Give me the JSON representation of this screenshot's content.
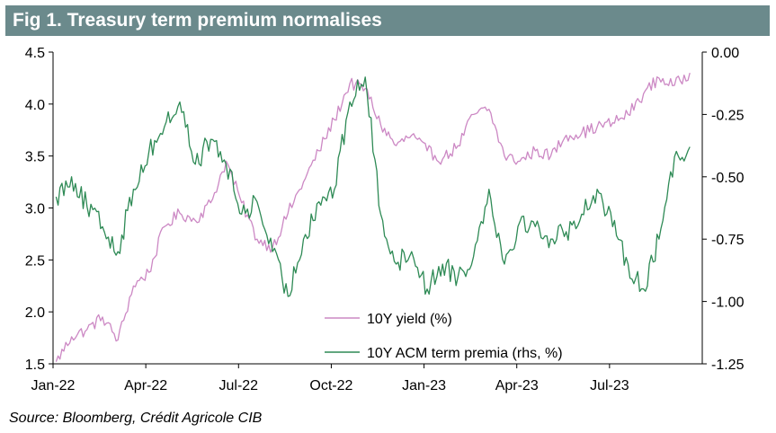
{
  "figure": {
    "title": "Fig 1. Treasury term premium normalises",
    "source": "Source: Bloomberg, Crédit Agricole CIB"
  },
  "chart_data": {
    "type": "line",
    "title": "Fig 1. Treasury term premium normalises",
    "x_ticks": [
      "Jan-22",
      "Apr-22",
      "Jul-22",
      "Oct-22",
      "Jan-23",
      "Apr-23",
      "Jul-23"
    ],
    "x_range": [
      "2022-01",
      "2023-10"
    ],
    "y_left": {
      "range": [
        1.5,
        4.5
      ],
      "ticks": [
        "1.5",
        "2.0",
        "2.5",
        "3.0",
        "3.5",
        "4.0",
        "4.5"
      ]
    },
    "y_right": {
      "range": [
        -1.25,
        0.0
      ],
      "ticks": [
        "-1.25",
        "-1.00",
        "-0.75",
        "-0.50",
        "-0.25",
        "0.00"
      ]
    },
    "grid": false,
    "legend_position": "bottom-center",
    "series": [
      {
        "name": "10Y yield (%)",
        "axis": "left",
        "color": "#cc88c4",
        "x": [
          "2022-01",
          "2022-01",
          "2022-02",
          "2022-02",
          "2022-03",
          "2022-03",
          "2022-04",
          "2022-04",
          "2022-05",
          "2022-05",
          "2022-06",
          "2022-06",
          "2022-07",
          "2022-07",
          "2022-08",
          "2022-08",
          "2022-09",
          "2022-09",
          "2022-10",
          "2022-10",
          "2022-11",
          "2022-11",
          "2022-12",
          "2022-12",
          "2023-01",
          "2023-01",
          "2023-02",
          "2023-02",
          "2023-03",
          "2023-03",
          "2023-04",
          "2023-04",
          "2023-05",
          "2023-05",
          "2023-06",
          "2023-06",
          "2023-07",
          "2023-07",
          "2023-08",
          "2023-08",
          "2023-09",
          "2023-09"
        ],
        "values": [
          1.52,
          1.76,
          1.83,
          1.95,
          1.73,
          2.25,
          2.38,
          2.82,
          2.95,
          2.88,
          3.05,
          3.45,
          3.05,
          2.7,
          2.62,
          2.95,
          3.25,
          3.55,
          3.85,
          4.2,
          4.15,
          3.8,
          3.6,
          3.7,
          3.55,
          3.47,
          3.6,
          3.9,
          3.95,
          3.5,
          3.45,
          3.55,
          3.5,
          3.7,
          3.72,
          3.78,
          3.82,
          3.9,
          4.1,
          4.25,
          4.18,
          4.3
        ]
      },
      {
        "name": "10Y ACM term premia (rhs, %)",
        "axis": "right",
        "color": "#2e8a55",
        "x": [
          "2022-01",
          "2022-01",
          "2022-02",
          "2022-02",
          "2022-03",
          "2022-03",
          "2022-04",
          "2022-04",
          "2022-05",
          "2022-05",
          "2022-06",
          "2022-06",
          "2022-07",
          "2022-07",
          "2022-08",
          "2022-08",
          "2022-09",
          "2022-09",
          "2022-10",
          "2022-10",
          "2022-11",
          "2022-11",
          "2022-12",
          "2022-12",
          "2023-01",
          "2023-01",
          "2023-02",
          "2023-02",
          "2023-03",
          "2023-03",
          "2023-04",
          "2023-04",
          "2023-05",
          "2023-05",
          "2023-06",
          "2023-06",
          "2023-07",
          "2023-07",
          "2023-08",
          "2023-08",
          "2023-09",
          "2023-09"
        ],
        "values": [
          -0.58,
          -0.5,
          -0.62,
          -0.7,
          -0.8,
          -0.55,
          -0.4,
          -0.3,
          -0.2,
          -0.45,
          -0.35,
          -0.45,
          -0.65,
          -0.6,
          -0.8,
          -0.98,
          -0.75,
          -0.6,
          -0.55,
          -0.2,
          -0.1,
          -0.65,
          -0.85,
          -0.8,
          -0.95,
          -0.85,
          -0.9,
          -0.82,
          -0.55,
          -0.85,
          -0.68,
          -0.7,
          -0.75,
          -0.72,
          -0.65,
          -0.55,
          -0.7,
          -0.85,
          -0.95,
          -0.75,
          -0.42,
          -0.38
        ]
      }
    ]
  }
}
